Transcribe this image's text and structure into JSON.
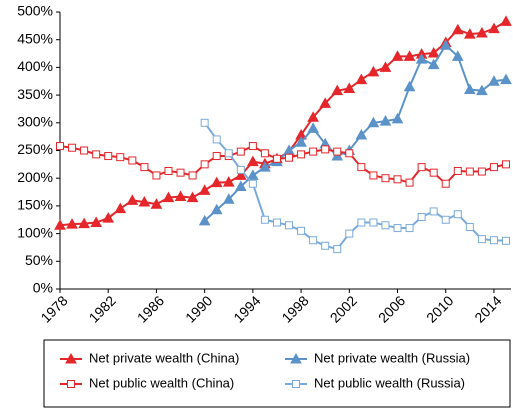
{
  "chart_data": {
    "type": "line",
    "x": [
      1978,
      1979,
      1980,
      1981,
      1982,
      1983,
      1984,
      1985,
      1986,
      1987,
      1988,
      1989,
      1990,
      1991,
      1992,
      1993,
      1994,
      1995,
      1996,
      1997,
      1998,
      1999,
      2000,
      2001,
      2002,
      2003,
      2004,
      2005,
      2006,
      2007,
      2008,
      2009,
      2010,
      2011,
      2012,
      2013,
      2014,
      2015
    ],
    "series": [
      {
        "name": "Net private wealth (China)",
        "color": "#e5262a",
        "marker": "triangle",
        "filled": true,
        "values": [
          115,
          117,
          118,
          120,
          128,
          145,
          160,
          157,
          153,
          165,
          167,
          165,
          178,
          192,
          193,
          205,
          230,
          226,
          235,
          248,
          278,
          310,
          335,
          358,
          362,
          378,
          392,
          400,
          420,
          420,
          424,
          426,
          445,
          468,
          460,
          462,
          470,
          483
        ]
      },
      {
        "name": "Net private wealth (Russia)",
        "color": "#5b93c9",
        "marker": "triangle",
        "filled": true,
        "values": [
          null,
          null,
          null,
          null,
          null,
          null,
          null,
          null,
          null,
          null,
          null,
          null,
          123,
          143,
          162,
          185,
          205,
          220,
          230,
          250,
          265,
          290,
          262,
          240,
          250,
          278,
          300,
          303,
          307,
          365,
          415,
          405,
          440,
          420,
          360,
          358,
          375,
          378
        ]
      },
      {
        "name": "Net public wealth (China)",
        "color": "#e5262a",
        "marker": "square",
        "filled": false,
        "values": [
          258,
          255,
          250,
          243,
          240,
          238,
          232,
          220,
          205,
          213,
          210,
          205,
          225,
          240,
          240,
          248,
          258,
          245,
          235,
          237,
          243,
          248,
          252,
          248,
          245,
          220,
          205,
          200,
          198,
          192,
          220,
          210,
          190,
          213,
          212,
          212,
          220,
          225
        ]
      },
      {
        "name": "Net public wealth (Russia)",
        "color": "#7aaadb",
        "marker": "square",
        "filled": false,
        "values": [
          null,
          null,
          null,
          null,
          null,
          null,
          null,
          null,
          null,
          null,
          null,
          null,
          300,
          270,
          245,
          215,
          190,
          125,
          120,
          115,
          105,
          88,
          78,
          72,
          100,
          120,
          120,
          115,
          110,
          110,
          130,
          140,
          125,
          135,
          112,
          90,
          88,
          87
        ]
      }
    ],
    "xlim": [
      1978,
      2015
    ],
    "xticks": [
      1978,
      1982,
      1986,
      1990,
      1994,
      1998,
      2002,
      2006,
      2010,
      2014
    ],
    "ylim": [
      0,
      500
    ],
    "yticks": [
      {
        "value": 0,
        "label": "0%"
      },
      {
        "value": 50,
        "label": "50%"
      },
      {
        "value": 100,
        "label": "100%"
      },
      {
        "value": 150,
        "label": "150%"
      },
      {
        "value": 200,
        "label": "200%"
      },
      {
        "value": 250,
        "label": "250%"
      },
      {
        "value": 300,
        "label": "300%"
      },
      {
        "value": 350,
        "label": "350%"
      },
      {
        "value": 400,
        "label": "400%"
      },
      {
        "value": 450,
        "label": "450%"
      },
      {
        "value": 500,
        "label": "500%"
      }
    ],
    "grid": false
  }
}
